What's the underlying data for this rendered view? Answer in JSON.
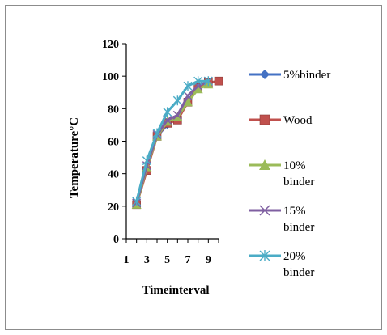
{
  "chart_data": {
    "type": "line",
    "xlabel": "Timeinterval",
    "ylabel": "Temperature°C",
    "x": [
      2,
      3,
      4,
      5,
      6,
      7,
      8,
      9,
      10
    ],
    "xticks": [
      "1",
      "3",
      "5",
      "7",
      "9"
    ],
    "xtick_values": [
      1,
      3,
      5,
      7,
      9
    ],
    "xlim": [
      1,
      10
    ],
    "ylim": [
      0,
      120
    ],
    "yticks": [
      "0",
      "20",
      "40",
      "60",
      "80",
      "100",
      "120"
    ],
    "ytick_values": [
      0,
      20,
      40,
      60,
      80,
      100,
      120
    ],
    "grid": false,
    "legend_position": "right",
    "series": [
      {
        "name": "5%binder",
        "color": "#4472c4",
        "marker": "diamond",
        "values": [
          21,
          43,
          63,
          70,
          75,
          85,
          93,
          96,
          null
        ]
      },
      {
        "name": "Wood",
        "color": "#c0504d",
        "marker": "square",
        "values": [
          21,
          42,
          63,
          71,
          73,
          84,
          93,
          96,
          97
        ]
      },
      {
        "name": "10% binder",
        "color": "#9bbb59",
        "marker": "triangle",
        "values": [
          21,
          44,
          63,
          72,
          75,
          84,
          92,
          95,
          null
        ]
      },
      {
        "name": "15% binder",
        "color": "#7f5fa1",
        "marker": "x",
        "values": [
          22,
          45,
          64,
          73,
          76,
          88,
          94,
          97,
          null
        ]
      },
      {
        "name": "20% binder",
        "color": "#4bacc6",
        "marker": "star",
        "values": [
          23,
          48,
          65,
          78,
          85,
          94,
          97,
          97,
          null
        ]
      }
    ]
  }
}
